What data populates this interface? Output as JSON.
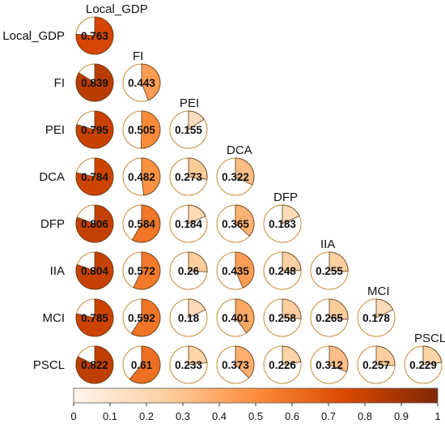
{
  "chart_data": {
    "type": "heatmap",
    "style": "pie-correlation-matrix",
    "triangle": "lower",
    "variables": [
      "Local_GDP",
      "FI",
      "PEI",
      "DCA",
      "DFP",
      "IIA",
      "MCI",
      "PSCL"
    ],
    "matrix": [
      [
        0.763
      ],
      [
        0.839,
        0.443
      ],
      [
        0.795,
        0.505,
        0.155
      ],
      [
        0.784,
        0.482,
        0.273,
        0.322
      ],
      [
        0.806,
        0.584,
        0.184,
        0.365,
        0.183
      ],
      [
        0.804,
        0.572,
        0.26,
        0.435,
        0.248,
        0.255
      ],
      [
        0.785,
        0.592,
        0.18,
        0.401,
        0.258,
        0.265,
        0.178
      ],
      [
        0.822,
        0.61,
        0.233,
        0.373,
        0.226,
        0.312,
        0.257,
        0.229
      ]
    ],
    "value_labels": [
      [
        "0.763"
      ],
      [
        "0.839",
        "0.443"
      ],
      [
        "0.795",
        "0.505",
        "0.155"
      ],
      [
        "0.784",
        "0.482",
        "0.273",
        "0.322"
      ],
      [
        "0.806",
        "0.584",
        "0.184",
        "0.365",
        "0.183"
      ],
      [
        "0.804",
        "0.572",
        "0.26",
        "0.435",
        "0.248",
        "0.255"
      ],
      [
        "0.785",
        "0.592",
        "0.18",
        "0.401",
        "0.258",
        "0.265",
        "0.178"
      ],
      [
        "0.822",
        "0.61",
        "0.233",
        "0.373",
        "0.226",
        "0.312",
        "0.257",
        "0.229"
      ]
    ],
    "colorbar": {
      "range": [
        0,
        1
      ],
      "ticks": [
        "0",
        "0.1",
        "0.2",
        "0.3",
        "0.4",
        "0.5",
        "0.6",
        "0.7",
        "0.8",
        "0.9",
        "1"
      ],
      "colors": [
        "#fff5eb",
        "#fdd0a2",
        "#fd8d3c",
        "#d94801",
        "#7f2704"
      ]
    },
    "pie_outline_color": "#c98a3a",
    "legend_position": "bottom"
  }
}
